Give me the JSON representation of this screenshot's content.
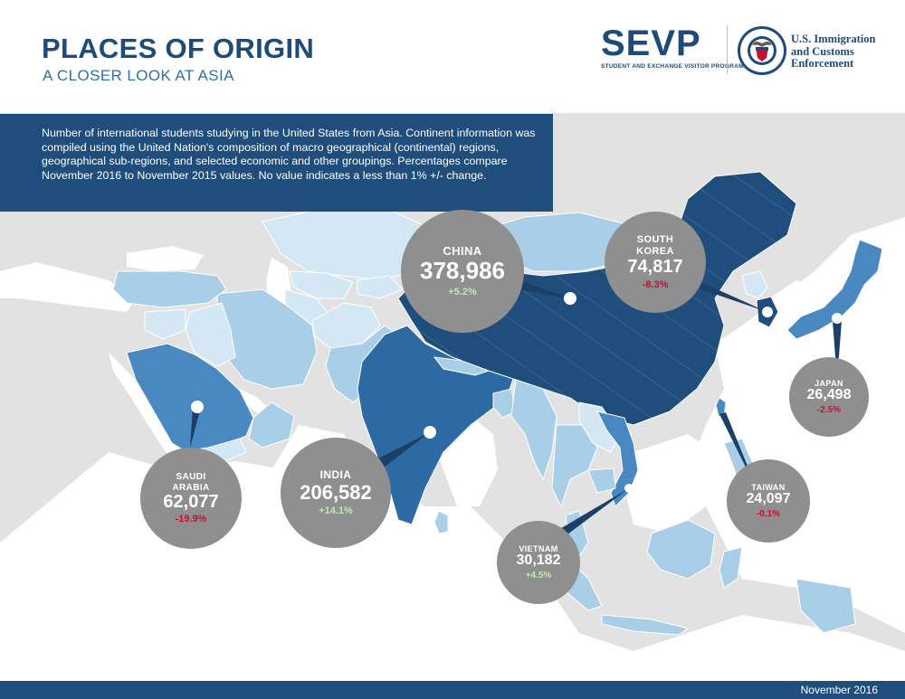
{
  "header": {
    "title": "PLACES OF ORIGIN",
    "subtitle": "A CLOSER LOOK AT ASIA"
  },
  "logo": {
    "sevp": "SEVP",
    "sevp_full": "STUDENT AND EXCHANGE VISITOR PROGRAM",
    "ice_line1": "U.S. Immigration",
    "ice_line2": "and Customs",
    "ice_line3": "Enforcement",
    "seal_text": "U.S. DEPARTMENT OF HOMELAND SECURITY"
  },
  "info": {
    "text": "Number of international students studying in the United States from Asia. Continent information was  compiled using the United Nation's composition of macro geographical (continental) regions,  geographical sub-regions, and selected economic and other groupings. Percentages compare November 2016 to November 2015 values. No value indicates a less than 1% +/- change."
  },
  "countries": [
    {
      "name": "CHINA",
      "value": "378,986",
      "change": "+5.2%",
      "trend": "up"
    },
    {
      "name": "SOUTH KOREA",
      "value": "74,817",
      "change": "-8.3%",
      "trend": "down"
    },
    {
      "name": "JAPAN",
      "value": "26,498",
      "change": "-2.5%",
      "trend": "down"
    },
    {
      "name": "INDIA",
      "value": "206,582",
      "change": "+14.1%",
      "trend": "up"
    },
    {
      "name": "SAUDI ARABIA",
      "value": "62,077",
      "change": "-19.9%",
      "trend": "down"
    },
    {
      "name": "VIETNAM",
      "value": "30,182",
      "change": "+4.5%",
      "trend": "up"
    },
    {
      "name": "TAIWAN",
      "value": "24,097",
      "change": "-0.1%",
      "trend": "down"
    }
  ],
  "colors": {
    "darkest": "#1f4d7c",
    "dark": "#2d6aa3",
    "medium": "#4a88c2",
    "light": "#a9cfe8",
    "lightest": "#d3e7f4",
    "land_gray": "#e3e3e3",
    "border_gray": "#ffffff",
    "bubble": "#8f8f8f"
  },
  "footer": {
    "date": "November 2016"
  }
}
